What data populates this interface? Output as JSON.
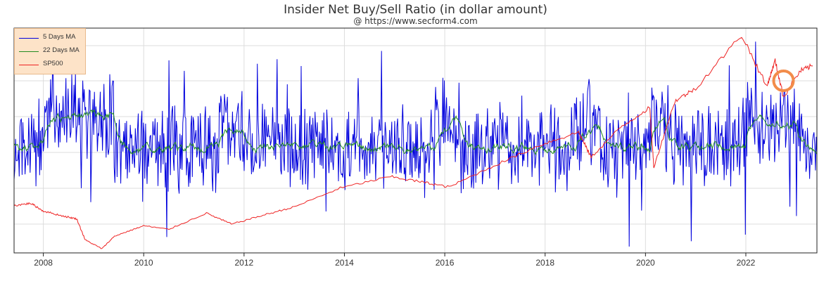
{
  "chart_data": {
    "type": "line",
    "title": "Insider Net Buy/Sell Ratio (in dollar amount)",
    "subtitle": "@ https://www.secform4.com",
    "x_ticks": [
      "2008",
      "2010",
      "2012",
      "2014",
      "2016",
      "2018",
      "2020",
      "2022"
    ],
    "x_range": [
      "2007-05",
      "2023-05"
    ],
    "y_axis_labels": "none shown",
    "grid": true,
    "legend_position": "top-left",
    "series": [
      {
        "name": "5 Days MA",
        "color": "#0000dd",
        "style": "noisy weekly-smoothed ratio, frequent spikes"
      },
      {
        "name": "22 Days MA",
        "color": "#228b22",
        "style": "smoother monthly-smoothed ratio"
      },
      {
        "name": "SP500",
        "color": "#ee2222",
        "points": [
          [
            "2007-06",
            1505
          ],
          [
            "2007-10",
            1550
          ],
          [
            "2008-01",
            1400
          ],
          [
            "2008-06",
            1300
          ],
          [
            "2008-09",
            1250
          ],
          [
            "2008-11",
            850
          ],
          [
            "2009-03",
            680
          ],
          [
            "2009-06",
            920
          ],
          [
            "2010-01",
            1120
          ],
          [
            "2010-07",
            1050
          ],
          [
            "2011-04",
            1360
          ],
          [
            "2011-10",
            1150
          ],
          [
            "2012-06",
            1330
          ],
          [
            "2013-01",
            1480
          ],
          [
            "2013-12",
            1840
          ],
          [
            "2014-12",
            2060
          ],
          [
            "2015-08",
            1950
          ],
          [
            "2016-02",
            1860
          ],
          [
            "2016-12",
            2240
          ],
          [
            "2017-12",
            2670
          ],
          [
            "2018-09",
            2910
          ],
          [
            "2018-12",
            2430
          ],
          [
            "2019-07",
            3000
          ],
          [
            "2020-02",
            3380
          ],
          [
            "2020-03",
            2240
          ],
          [
            "2020-08",
            3500
          ],
          [
            "2021-01",
            3750
          ],
          [
            "2021-12",
            4770
          ],
          [
            "2022-06",
            3780
          ],
          [
            "2022-08",
            4280
          ],
          [
            "2022-10",
            3580
          ],
          [
            "2023-02",
            4080
          ],
          [
            "2023-05",
            4180
          ]
        ]
      }
    ]
  },
  "annotation": {
    "shape": "circle",
    "color": "#f28c4a",
    "near": "2022-10"
  },
  "legend": {
    "items": [
      {
        "label": "5 Days MA",
        "color": "#0000dd"
      },
      {
        "label": "22 Days MA",
        "color": "#228b22"
      },
      {
        "label": "SP500",
        "color": "#ee2222"
      }
    ]
  }
}
